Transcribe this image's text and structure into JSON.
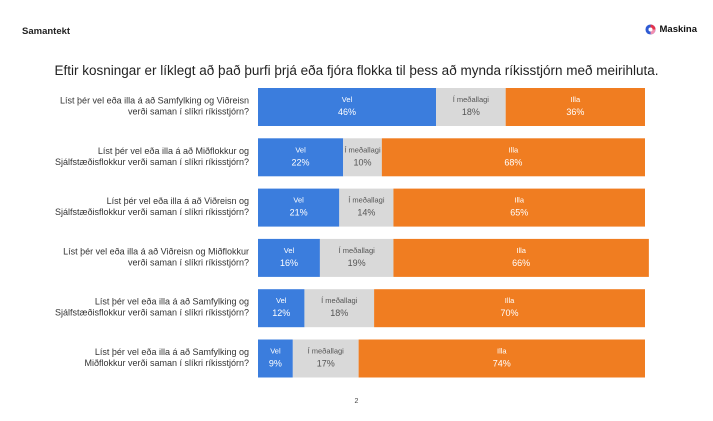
{
  "header": {
    "section": "Samantekt",
    "brand": "Maskina",
    "brand_colors": {
      "blue": "#2f5bd3",
      "red": "#e6334a",
      "pink": "#f28fb0"
    }
  },
  "headline": "Eftir kosningar er líklegt að það þurfi þrjá eða fjóra flokka til þess að mynda ríkisstjórn með meirihluta.",
  "page_number": "2",
  "chart_data": {
    "type": "bar",
    "orientation": "horizontal",
    "stacked": true,
    "xlim": [
      0,
      100
    ],
    "unit": "%",
    "categories": [
      [
        "Líst þér vel eða illa á að Samfylking og Viðreisn",
        "verði saman í slíkri ríkisstjórn?"
      ],
      [
        "Líst þér vel eða illa á að Miðflokkur og",
        "Sjálfstæðisflokkur verði saman í slíkri ríkisstjórn?"
      ],
      [
        "Líst þér vel eða illa á að Viðreisn og",
        "Sjálfstæðisflokkur verði saman í slíkri ríkisstjórn?"
      ],
      [
        "Líst þér vel eða illa á að Viðreisn og Miðflokkur",
        "verði saman í slíkri ríkisstjórn?"
      ],
      [
        "Líst þér vel eða illa á að Samfylking og",
        "Sjálfstæðisflokkur verði saman í slíkri ríkisstjórn?"
      ],
      [
        "Líst þér vel eða illa á að Samfylking og",
        "Miðflokkur verði saman í slíkri ríkisstjórn?"
      ]
    ],
    "series": [
      {
        "name": "Vel",
        "color": "#3b7ddd",
        "label_color": "#ffffff",
        "values": [
          46,
          22,
          21,
          16,
          12,
          9
        ]
      },
      {
        "name": "Í meðallagi",
        "color": "#d9d9d9",
        "label_color": "#555555",
        "values": [
          18,
          10,
          14,
          19,
          18,
          17
        ]
      },
      {
        "name": "Illa",
        "color": "#f07d21",
        "label_color": "#ffffff",
        "values": [
          36,
          68,
          65,
          66,
          70,
          74
        ]
      }
    ],
    "value_labels": [
      [
        "46%",
        "18%",
        "36%"
      ],
      [
        "22%",
        "10%",
        "68%"
      ],
      [
        "21%",
        "14%",
        "65%"
      ],
      [
        "16%",
        "19%",
        "66%"
      ],
      [
        "12%",
        "18%",
        "70%"
      ],
      [
        "9%",
        "17%",
        "74%"
      ]
    ]
  }
}
